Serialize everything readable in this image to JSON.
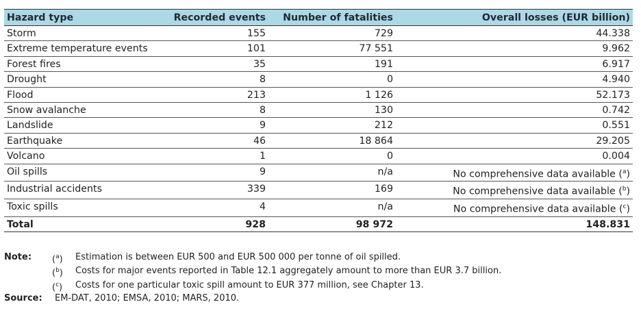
{
  "table": {
    "headers": [
      "Hazard type",
      "Recorded events",
      "Number of fatalities",
      "Overall losses (EUR billion)"
    ],
    "rows": [
      {
        "hazard": "Storm",
        "events": "155",
        "fatalities": "729",
        "losses": "44.338"
      },
      {
        "hazard": "Extreme temperature events",
        "events": "101",
        "fatalities": "77 551",
        "losses": "9.962"
      },
      {
        "hazard": "Forest fires",
        "events": "35",
        "fatalities": "191",
        "losses": "6.917"
      },
      {
        "hazard": "Drought",
        "events": "8",
        "fatalities": "0",
        "losses": "4.940"
      },
      {
        "hazard": "Flood",
        "events": "213",
        "fatalities": "1 126",
        "losses": "52.173"
      },
      {
        "hazard": "Snow avalanche",
        "events": "8",
        "fatalities": "130",
        "losses": "0.742"
      },
      {
        "hazard": "Landslide",
        "events": "9",
        "fatalities": "212",
        "losses": "0.551"
      },
      {
        "hazard": "Earthquake",
        "events": "46",
        "fatalities": "18 864",
        "losses": "29.205"
      },
      {
        "hazard": "Volcano",
        "events": "1",
        "fatalities": "0",
        "losses": "0.004"
      },
      {
        "hazard": "Oil spills",
        "events": "9",
        "fatalities": "n/a",
        "losses": "No comprehensive data available (a)"
      },
      {
        "hazard": "Industrial accidents",
        "events": "339",
        "fatalities": "169",
        "losses": "No comprehensive data available (b)"
      },
      {
        "hazard": "Toxic spills",
        "events": "4",
        "fatalities": "n/a",
        "losses": "No comprehensive data available (c)"
      }
    ],
    "total": {
      "hazard": "Total",
      "events": "928",
      "fatalities": "98 972",
      "losses": "148.831"
    }
  },
  "notes": {
    "label": "Note:",
    "items": [
      {
        "mark": "(a)",
        "text": "Estimation is between EUR 500 and EUR 500 000 per tonne of oil spilled."
      },
      {
        "mark": "(b)",
        "text": "Costs for major events reported in Table 12.1 aggregately amount to more than EUR 3.7 billion."
      },
      {
        "mark": "(c)",
        "text": "Costs for one particular toxic spill amount to EUR 377 million, see Chapter 13."
      }
    ]
  },
  "source": {
    "label": "Source:",
    "text": "EM-DAT, 2010; EMSA, 2010; MARS, 2010."
  },
  "colors": {
    "header_bg": "#add8e6",
    "text": "#222222"
  }
}
